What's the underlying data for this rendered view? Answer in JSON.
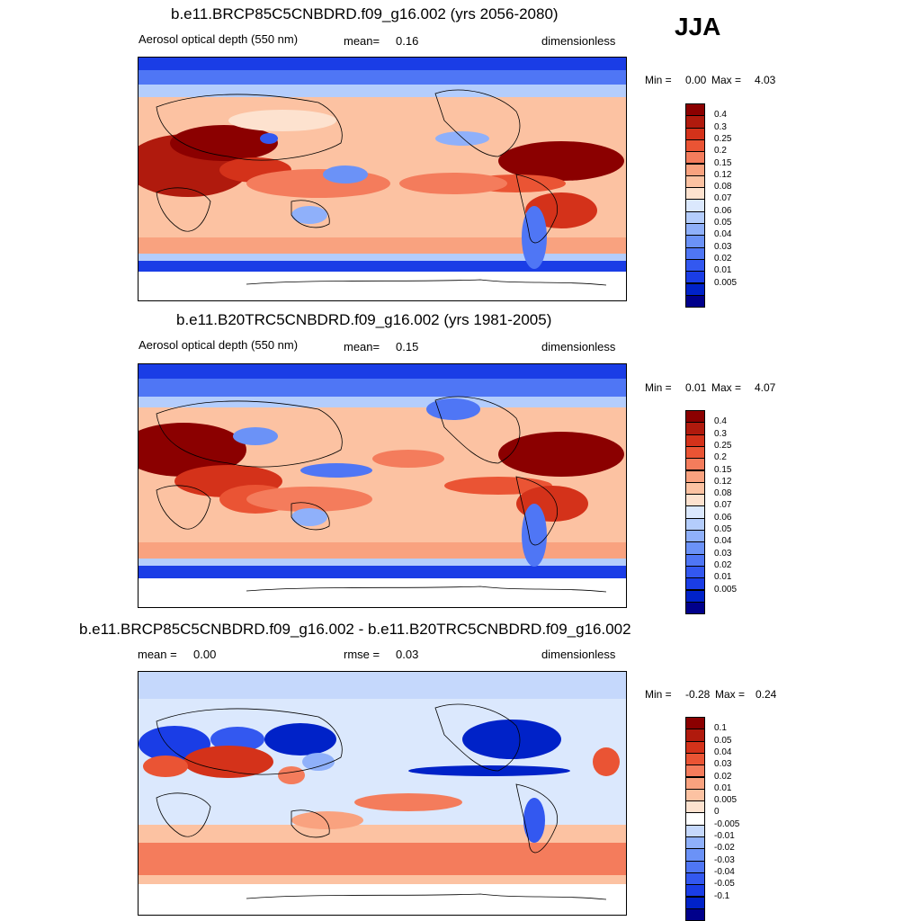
{
  "season": "JJA",
  "panels": [
    {
      "title": "b.e11.BRCP85C5CNBDRD.f09_g16.002 (yrs 2056-2080)",
      "left_label": "Aerosol optical depth (550 nm)",
      "center_label": "mean=",
      "center_value": "0.16",
      "right_label": "dimensionless",
      "min_label": "Min =",
      "min_value": "0.00",
      "max_label": "Max =",
      "max_value": "4.03",
      "palette": [
        "#00008b",
        "#0022c8",
        "#1a3de6",
        "#3358f0",
        "#4f76f5",
        "#6b92f7",
        "#8fb0fa",
        "#b4cdfc",
        "#dbe8fd",
        "#fde2cf",
        "#fcc2a2",
        "#f9a27f",
        "#f47c5c",
        "#ea5434",
        "#d4321a",
        "#b01a0d",
        "#8b0000"
      ],
      "levels": [
        "0.4",
        "0.3",
        "0.25",
        "0.2",
        "0.15",
        "0.12",
        "0.08",
        "0.07",
        "0.06",
        "0.05",
        "0.04",
        "0.03",
        "0.02",
        "0.01",
        "0.005"
      ]
    },
    {
      "title": "b.e11.B20TRC5CNBDRD.f09_g16.002 (yrs 1981-2005)",
      "left_label": "Aerosol optical depth (550 nm)",
      "center_label": "mean=",
      "center_value": "0.15",
      "right_label": "dimensionless",
      "min_label": "Min =",
      "min_value": "0.01",
      "max_label": "Max =",
      "max_value": "4.07",
      "palette": [
        "#00008b",
        "#0022c8",
        "#1a3de6",
        "#3358f0",
        "#4f76f5",
        "#6b92f7",
        "#8fb0fa",
        "#b4cdfc",
        "#dbe8fd",
        "#fde2cf",
        "#fcc2a2",
        "#f9a27f",
        "#f47c5c",
        "#ea5434",
        "#d4321a",
        "#b01a0d",
        "#8b0000"
      ],
      "levels": [
        "0.4",
        "0.3",
        "0.25",
        "0.2",
        "0.15",
        "0.12",
        "0.08",
        "0.07",
        "0.06",
        "0.05",
        "0.04",
        "0.03",
        "0.02",
        "0.01",
        "0.005"
      ]
    },
    {
      "title": "b.e11.BRCP85C5CNBDRD.f09_g16.002 - b.e11.B20TRC5CNBDRD.f09_g16.002",
      "left_label": "mean =",
      "left_value": "0.00",
      "center_label": "rmse =",
      "center_value": "0.03",
      "right_label": "dimensionless",
      "min_label": "Min =",
      "min_value": "-0.28",
      "max_label": "Max =",
      "max_value": "0.24",
      "palette": [
        "#00008b",
        "#0022c8",
        "#1a3de6",
        "#3358f0",
        "#4f76f5",
        "#6b92f7",
        "#8fb0fa",
        "#c5d8fc",
        "#ffffff",
        "#fde2cf",
        "#fcc2a2",
        "#f9a27f",
        "#f47c5c",
        "#ea5434",
        "#d4321a",
        "#b01a0d",
        "#8b0000"
      ],
      "levels": [
        "0.1",
        "0.05",
        "0.04",
        "0.03",
        "0.02",
        "0.01",
        "0.005",
        "0",
        "-0.005",
        "-0.01",
        "-0.02",
        "-0.03",
        "-0.04",
        "-0.05",
        "-0.1"
      ]
    }
  ],
  "chart_data": {
    "type": "heatmap",
    "description_units": "dimensionless",
    "variable": "Aerosol optical depth (550 nm)",
    "panels": [
      {
        "name": "b.e11.BRCP85C5CNBDRD.f09_g16.002 (yrs 2056-2080)",
        "mean": 0.16,
        "min": 0.0,
        "max": 4.03
      },
      {
        "name": "b.e11.B20TRC5CNBDRD.f09_g16.002 (yrs 1981-2005)",
        "mean": 0.15,
        "min": 0.01,
        "max": 4.07
      },
      {
        "name": "b.e11.BRCP85C5CNBDRD.f09_g16.002 - b.e11.B20TRC5CNBDRD.f09_g16.002",
        "mean": 0.0,
        "rmse": 0.03,
        "min": -0.28,
        "max": 0.24
      }
    ],
    "contour_levels_abs": [
      0.005,
      0.01,
      0.02,
      0.03,
      0.04,
      0.05,
      0.06,
      0.07,
      0.08,
      0.12,
      0.15,
      0.2,
      0.25,
      0.3,
      0.4
    ],
    "contour_levels_diff": [
      -0.1,
      -0.05,
      -0.04,
      -0.03,
      -0.02,
      -0.01,
      -0.005,
      0,
      0.005,
      0.01,
      0.02,
      0.03,
      0.04,
      0.05,
      0.1
    ]
  }
}
